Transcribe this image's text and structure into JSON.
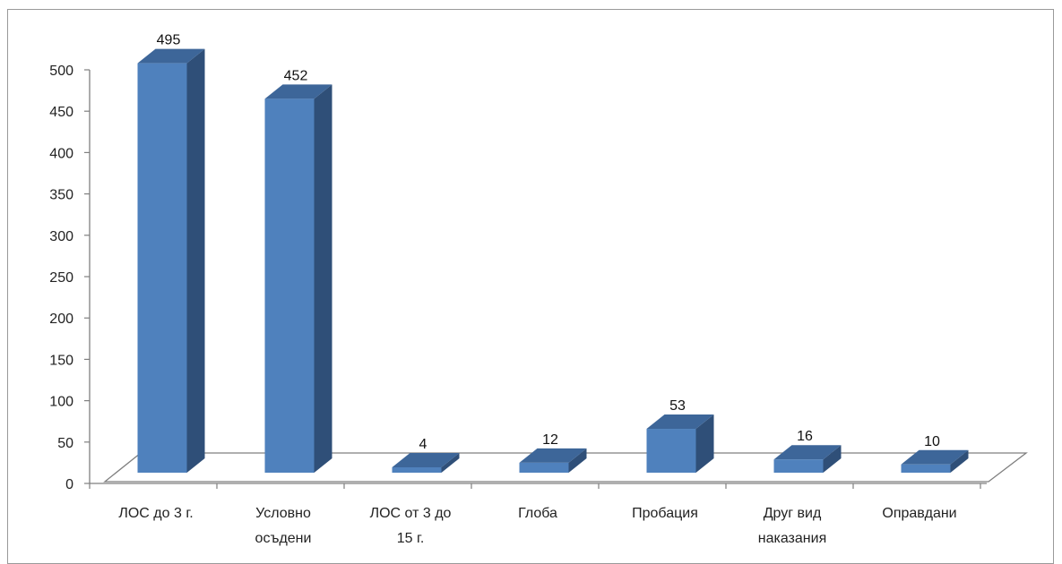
{
  "chart_data": {
    "type": "bar",
    "title": "",
    "xlabel": "",
    "ylabel": "",
    "ylim": [
      0,
      500
    ],
    "yticks": [
      0,
      50,
      100,
      150,
      200,
      250,
      300,
      350,
      400,
      450,
      500
    ],
    "grid": false,
    "legend": "none",
    "style": "3d-column",
    "categories": [
      [
        "ЛОС до 3 г."
      ],
      [
        "Условно",
        "осъдени"
      ],
      [
        "ЛОС от 3 до",
        "15 г."
      ],
      [
        "Глоба"
      ],
      [
        "Пробация"
      ],
      [
        "Друг вид",
        "наказания"
      ],
      [
        "Оправдани"
      ]
    ],
    "values": [
      495,
      452,
      4,
      12,
      53,
      16,
      10
    ],
    "colors": {
      "front": "#4f81bd",
      "side": "#2f4f78",
      "top": "#3d6699",
      "axis": "#7f7f7f",
      "text": "#222222"
    }
  }
}
